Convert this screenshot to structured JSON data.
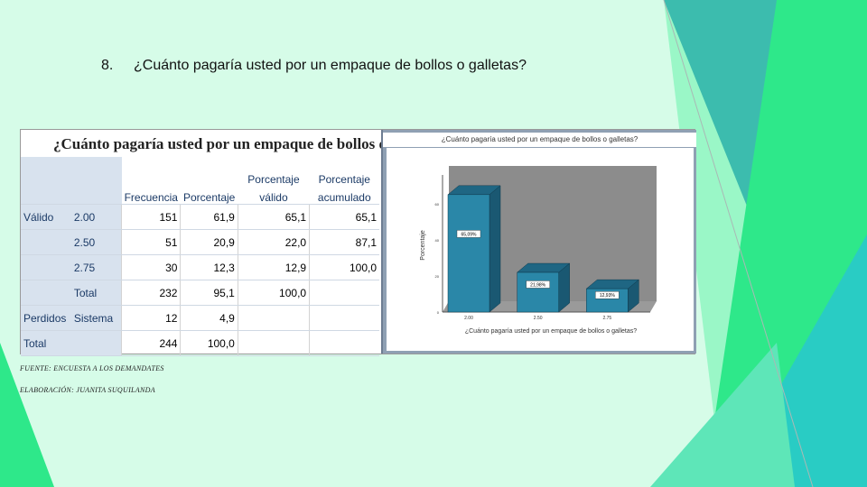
{
  "slide": {
    "number": "8.",
    "question": "¿Cuánto pagaría usted por un empaque de bollos o galletas?"
  },
  "table": {
    "title": "¿Cuánto pagaría usted por un empaque de bollos o galletas?",
    "headers": [
      "Frecuencia",
      "Porcentaje",
      "Porcentaje válido",
      "Porcentaje acumulado"
    ],
    "header_top": [
      "",
      "",
      "Porcentaje",
      "Porcentaje"
    ],
    "header_bottom": [
      "Frecuencia",
      "Porcentaje",
      "válido",
      "acumulado"
    ],
    "rows": [
      {
        "group": "Válido",
        "label": "2.00",
        "frecuencia": "151",
        "porcentaje": "61,9",
        "valido": "65,1",
        "acumulado": "65,1"
      },
      {
        "group": "",
        "label": "2.50",
        "frecuencia": "51",
        "porcentaje": "20,9",
        "valido": "22,0",
        "acumulado": "87,1"
      },
      {
        "group": "",
        "label": "2.75",
        "frecuencia": "30",
        "porcentaje": "12,3",
        "valido": "12,9",
        "acumulado": "100,0"
      },
      {
        "group": "",
        "label": "Total",
        "frecuencia": "232",
        "porcentaje": "95,1",
        "valido": "100,0",
        "acumulado": ""
      },
      {
        "group": "Perdidos",
        "label": "Sistema",
        "frecuencia": "12",
        "porcentaje": "4,9",
        "valido": "",
        "acumulado": ""
      },
      {
        "group": "Total",
        "label": "",
        "frecuencia": "244",
        "porcentaje": "100,0",
        "valido": "",
        "acumulado": ""
      }
    ]
  },
  "notes": {
    "fuente": "FUENTE: ENCUESTA A LOS DEMANDATES",
    "elaboracion": "ELABORACIÓN: JUANITA SUQUILANDA"
  },
  "chart_data": {
    "type": "bar",
    "title": "¿Cuánto pagaría usted por un empaque de bollos o galletas?",
    "xlabel": "¿Cuánto pagaría usted por un empaque de bollos o galletas?",
    "ylabel": "Porcentaje",
    "categories": [
      "2.00",
      "2.50",
      "2.75"
    ],
    "values": [
      65.09,
      21.98,
      12.93
    ],
    "data_labels": [
      "65,09%",
      "21,98%",
      "12,93%"
    ],
    "yticks": [
      "0",
      "20",
      "40",
      "60"
    ],
    "ylim": [
      0,
      80
    ],
    "style": "3d",
    "colors": {
      "bar_front": "#2a87a8",
      "bar_top": "#1f6683",
      "bar_side": "#1a5872",
      "plot_bg": "#8c8c8c",
      "frame": "#8fa0b3"
    }
  }
}
